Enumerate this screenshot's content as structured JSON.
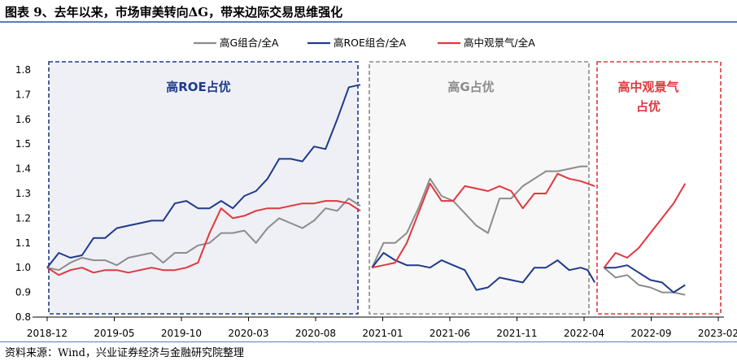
{
  "title": "图表 9、去年以来，市场审美转向ΔG，带来边际交易思维强化",
  "source": "资料来源：Wind，兴业证券经济与金融研究院整理",
  "colors": {
    "gray": "#8c8c8c",
    "navy": "#1f3a8a",
    "red": "#e0383e",
    "region_fill": "#eef0f5"
  },
  "chart_data": {
    "type": "line",
    "legend_position": "top-center",
    "ylim": [
      0.8,
      1.8
    ],
    "yticks": [
      "1.8",
      "1.7",
      "1.6",
      "1.5",
      "1.4",
      "1.3",
      "1.2",
      "1.1",
      "1.0",
      "0.9",
      "0.8"
    ],
    "xticks": [
      "2018-12",
      "2019-05",
      "2019-10",
      "2020-03",
      "2020-08",
      "2021-01",
      "2021-06",
      "2021-11",
      "2022-04",
      "2022-09",
      "2023-02"
    ],
    "regions": [
      {
        "label_lines": [
          "高ROE占优"
        ],
        "color": "#1f3a8a"
      },
      {
        "label_lines": [
          "高G占优"
        ],
        "color": "#8c8c8c"
      },
      {
        "label_lines": [
          "高中观景气",
          "占优"
        ],
        "color": "#e0383e"
      }
    ],
    "series": [
      {
        "name": "高G组合/全A",
        "color": "#8c8c8c",
        "segments": [
          [
            [
              0,
              1.0
            ],
            [
              0.5,
              0.99
            ],
            [
              1,
              1.02
            ],
            [
              1.5,
              1.04
            ],
            [
              2,
              1.03
            ],
            [
              2.5,
              1.03
            ],
            [
              3,
              1.01
            ],
            [
              3.5,
              1.04
            ],
            [
              4,
              1.05
            ],
            [
              4.5,
              1.06
            ],
            [
              5,
              1.02
            ],
            [
              5.5,
              1.06
            ],
            [
              6,
              1.06
            ],
            [
              6.5,
              1.09
            ],
            [
              7,
              1.1
            ],
            [
              7.5,
              1.14
            ],
            [
              8,
              1.14
            ],
            [
              8.5,
              1.15
            ],
            [
              9,
              1.1
            ],
            [
              9.5,
              1.16
            ],
            [
              10,
              1.2
            ],
            [
              10.5,
              1.18
            ],
            [
              11,
              1.16
            ],
            [
              11.5,
              1.19
            ],
            [
              12,
              1.24
            ],
            [
              12.5,
              1.23
            ],
            [
              13,
              1.28
            ],
            [
              13.5,
              1.25
            ]
          ],
          [
            [
              14,
              1.0
            ],
            [
              14.5,
              1.1
            ],
            [
              15,
              1.1
            ],
            [
              15.5,
              1.14
            ],
            [
              16,
              1.24
            ],
            [
              16.5,
              1.36
            ],
            [
              17,
              1.29
            ],
            [
              17.5,
              1.27
            ],
            [
              18,
              1.22
            ],
            [
              18.5,
              1.17
            ],
            [
              19,
              1.14
            ],
            [
              19.5,
              1.28
            ],
            [
              20,
              1.28
            ],
            [
              20.5,
              1.33
            ],
            [
              21,
              1.36
            ],
            [
              21.5,
              1.39
            ],
            [
              22,
              1.39
            ],
            [
              22.5,
              1.4
            ],
            [
              23,
              1.41
            ],
            [
              23.3,
              1.41
            ]
          ],
          [
            [
              24,
              1.0
            ],
            [
              24.5,
              0.96
            ],
            [
              25,
              0.97
            ],
            [
              25.5,
              0.93
            ],
            [
              26,
              0.92
            ],
            [
              26.5,
              0.9
            ],
            [
              27,
              0.9
            ],
            [
              27.5,
              0.89
            ]
          ]
        ]
      },
      {
        "name": "高ROE组合/全A",
        "color": "#1f3a8a",
        "segments": [
          [
            [
              0,
              1.0
            ],
            [
              0.5,
              1.06
            ],
            [
              1,
              1.04
            ],
            [
              1.5,
              1.05
            ],
            [
              2,
              1.12
            ],
            [
              2.5,
              1.12
            ],
            [
              3,
              1.16
            ],
            [
              3.5,
              1.17
            ],
            [
              4,
              1.18
            ],
            [
              4.5,
              1.19
            ],
            [
              5,
              1.19
            ],
            [
              5.5,
              1.26
            ],
            [
              6,
              1.27
            ],
            [
              6.5,
              1.24
            ],
            [
              7,
              1.24
            ],
            [
              7.5,
              1.27
            ],
            [
              8,
              1.24
            ],
            [
              8.5,
              1.29
            ],
            [
              9,
              1.31
            ],
            [
              9.5,
              1.36
            ],
            [
              10,
              1.44
            ],
            [
              10.5,
              1.44
            ],
            [
              11,
              1.43
            ],
            [
              11.5,
              1.49
            ],
            [
              12,
              1.48
            ],
            [
              12.5,
              1.6
            ],
            [
              13,
              1.73
            ],
            [
              13.5,
              1.74
            ]
          ],
          [
            [
              14,
              1.0
            ],
            [
              14.5,
              1.06
            ],
            [
              15,
              1.03
            ],
            [
              15.5,
              1.01
            ],
            [
              16,
              1.01
            ],
            [
              16.5,
              1.0
            ],
            [
              17,
              1.03
            ],
            [
              17.5,
              1.01
            ],
            [
              18,
              0.99
            ],
            [
              18.5,
              0.91
            ],
            [
              19,
              0.92
            ],
            [
              19.5,
              0.96
            ],
            [
              20,
              0.95
            ],
            [
              20.5,
              0.94
            ],
            [
              21,
              1.0
            ],
            [
              21.5,
              1.0
            ],
            [
              22,
              1.03
            ],
            [
              22.5,
              0.99
            ],
            [
              23,
              1.0
            ],
            [
              23.3,
              0.99
            ],
            [
              23.6,
              0.94
            ]
          ],
          [
            [
              24,
              1.0
            ],
            [
              24.5,
              1.0
            ],
            [
              25,
              1.01
            ],
            [
              25.5,
              0.98
            ],
            [
              26,
              0.95
            ],
            [
              26.5,
              0.94
            ],
            [
              27,
              0.9
            ],
            [
              27.5,
              0.93
            ]
          ]
        ]
      },
      {
        "name": "高中观景气/全A",
        "color": "#e0383e",
        "segments": [
          [
            [
              0,
              1.0
            ],
            [
              0.5,
              0.97
            ],
            [
              1,
              0.99
            ],
            [
              1.5,
              1.0
            ],
            [
              2,
              0.98
            ],
            [
              2.5,
              0.99
            ],
            [
              3,
              0.99
            ],
            [
              3.5,
              0.98
            ],
            [
              4,
              0.99
            ],
            [
              4.5,
              1.0
            ],
            [
              5,
              0.99
            ],
            [
              5.5,
              0.99
            ],
            [
              6,
              1.0
            ],
            [
              6.5,
              1.02
            ],
            [
              7,
              1.14
            ],
            [
              7.5,
              1.24
            ],
            [
              8,
              1.2
            ],
            [
              8.5,
              1.21
            ],
            [
              9,
              1.23
            ],
            [
              9.5,
              1.24
            ],
            [
              10,
              1.24
            ],
            [
              10.5,
              1.25
            ],
            [
              11,
              1.26
            ],
            [
              11.5,
              1.26
            ],
            [
              12,
              1.27
            ],
            [
              12.5,
              1.27
            ],
            [
              13,
              1.26
            ],
            [
              13.5,
              1.23
            ]
          ],
          [
            [
              14,
              1.0
            ],
            [
              14.5,
              1.01
            ],
            [
              15,
              1.02
            ],
            [
              15.5,
              1.1
            ],
            [
              16,
              1.22
            ],
            [
              16.5,
              1.34
            ],
            [
              17,
              1.27
            ],
            [
              17.5,
              1.27
            ],
            [
              18,
              1.33
            ],
            [
              18.5,
              1.32
            ],
            [
              19,
              1.31
            ],
            [
              19.5,
              1.33
            ],
            [
              20,
              1.31
            ],
            [
              20.5,
              1.24
            ],
            [
              21,
              1.3
            ],
            [
              21.5,
              1.3
            ],
            [
              22,
              1.38
            ],
            [
              22.5,
              1.36
            ],
            [
              23,
              1.35
            ],
            [
              23.6,
              1.33
            ]
          ],
          [
            [
              24,
              1.0
            ],
            [
              24.5,
              1.06
            ],
            [
              25,
              1.04
            ],
            [
              25.5,
              1.08
            ],
            [
              26,
              1.14
            ],
            [
              26.5,
              1.2
            ],
            [
              27,
              1.26
            ],
            [
              27.5,
              1.34
            ]
          ]
        ]
      }
    ]
  }
}
